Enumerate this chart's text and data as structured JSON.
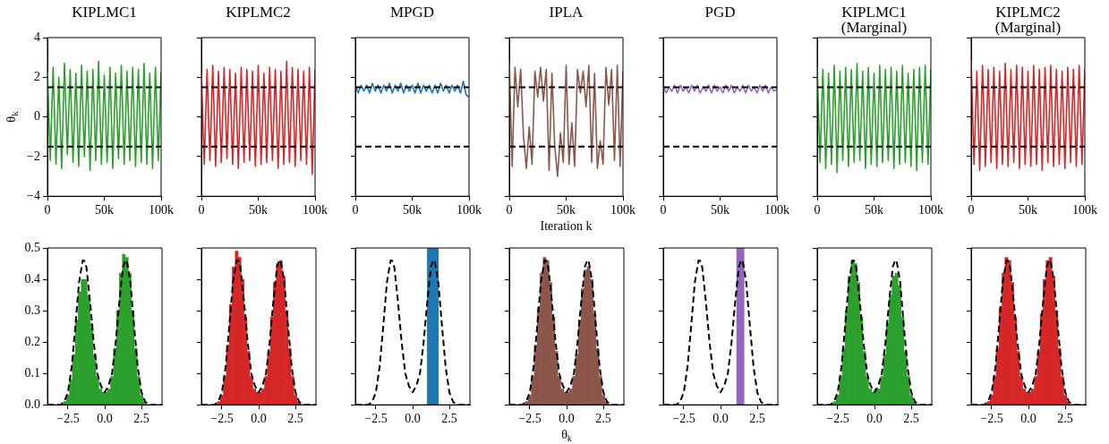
{
  "chart_data": [
    {
      "type": "line",
      "title": "KIPLMC1",
      "ylabel": "θ$_{k}$",
      "xlim": [
        0,
        100000
      ],
      "ylim": [
        -4,
        4
      ],
      "xticks": [
        {
          "value": 0,
          "label": "0"
        },
        {
          "value": 50000,
          "label": "50k"
        },
        {
          "value": 100000,
          "label": "100k"
        }
      ],
      "yticks": [
        {
          "value": -4,
          "label": "−4"
        },
        {
          "value": -2,
          "label": "−2"
        },
        0,
        2,
        4
      ],
      "ref_lines": [
        {
          "axis": "y",
          "value": 1.5,
          "color": "#000000",
          "line_style": "dashed"
        },
        {
          "axis": "y",
          "value": -1.5,
          "color": "#000000",
          "line_style": "dashed"
        }
      ],
      "x": [
        0,
        2500,
        5000,
        7500,
        10000,
        12500,
        15000,
        17500,
        20000,
        22500,
        25000,
        27500,
        30000,
        32500,
        35000,
        37500,
        40000,
        42500,
        45000,
        47500,
        50000,
        52500,
        55000,
        57500,
        60000,
        62500,
        65000,
        67500,
        70000,
        72500,
        75000,
        77500,
        80000,
        82500,
        85000,
        87500,
        90000,
        92500,
        95000,
        97500,
        100000
      ],
      "series": [
        {
          "color": "#2ca02c",
          "values": [
            2.3,
            -2.2,
            2.5,
            -2.4,
            2.0,
            -2.6,
            2.7,
            -1.9,
            2.4,
            -2.3,
            2.2,
            -2.5,
            2.6,
            -2.0,
            2.3,
            -2.7,
            2.4,
            -2.2,
            2.8,
            -2.4,
            2.1,
            -2.3,
            2.5,
            -2.6,
            2.2,
            -2.1,
            2.6,
            -2.4,
            2.3,
            -2.2,
            2.5,
            -2.5,
            2.4,
            -2.3,
            2.7,
            -2.4,
            2.2,
            -2.6,
            2.5,
            -2.2,
            2.3
          ]
        }
      ]
    },
    {
      "type": "line",
      "title": "KIPLMC2",
      "tick_labels": "x",
      "xlim": [
        0,
        100000
      ],
      "ylim": [
        -4,
        4
      ],
      "xticks": [
        {
          "value": 0,
          "label": "0"
        },
        {
          "value": 50000,
          "label": "50k"
        },
        {
          "value": 100000,
          "label": "100k"
        }
      ],
      "yticks": [
        -4,
        -2,
        0,
        2,
        4
      ],
      "ref_lines": [
        {
          "axis": "y",
          "value": 1.5,
          "color": "#000000",
          "line_style": "dashed"
        },
        {
          "axis": "y",
          "value": -1.5,
          "color": "#000000",
          "line_style": "dashed"
        }
      ],
      "x": [
        0,
        2500,
        5000,
        7500,
        10000,
        12500,
        15000,
        17500,
        20000,
        22500,
        25000,
        27500,
        30000,
        32500,
        35000,
        37500,
        40000,
        42500,
        45000,
        47500,
        50000,
        52500,
        55000,
        57500,
        60000,
        62500,
        65000,
        67500,
        70000,
        72500,
        75000,
        77500,
        80000,
        82500,
        85000,
        87500,
        90000,
        92500,
        95000,
        97500,
        100000
      ],
      "series": [
        {
          "color": "#d62728",
          "values": [
            2.2,
            -2.4,
            2.4,
            -2.2,
            2.6,
            -2.5,
            2.3,
            -2.3,
            2.5,
            -2.1,
            2.4,
            -2.4,
            2.2,
            -2.6,
            2.5,
            -2.3,
            2.4,
            -2.2,
            2.3,
            -2.5,
            2.6,
            -2.4,
            2.2,
            -2.3,
            2.5,
            -2.2,
            2.4,
            -2.6,
            2.3,
            -2.4,
            2.8,
            -2.3,
            2.5,
            -2.5,
            2.4,
            -2.2,
            2.3,
            -2.4,
            2.5,
            -2.9,
            2.4
          ]
        }
      ]
    },
    {
      "type": "line",
      "title": "MPGD",
      "tick_labels": "x",
      "xlim": [
        0,
        100000
      ],
      "ylim": [
        -4,
        4
      ],
      "xticks": [
        {
          "value": 0,
          "label": "0"
        },
        {
          "value": 50000,
          "label": "50k"
        },
        {
          "value": 100000,
          "label": "100k"
        }
      ],
      "yticks": [
        -4,
        -2,
        0,
        2,
        4
      ],
      "ref_lines": [
        {
          "axis": "y",
          "value": 1.5,
          "color": "#000000",
          "line_style": "dashed"
        },
        {
          "axis": "y",
          "value": -1.5,
          "color": "#000000",
          "line_style": "dashed"
        }
      ],
      "x": [
        0,
        2500,
        5000,
        7500,
        10000,
        12500,
        15000,
        17500,
        20000,
        22500,
        25000,
        27500,
        30000,
        32500,
        35000,
        37500,
        40000,
        42500,
        45000,
        47500,
        50000,
        52500,
        55000,
        57500,
        60000,
        62500,
        65000,
        67500,
        70000,
        72500,
        75000,
        77500,
        80000,
        82500,
        85000,
        87500,
        90000,
        92500,
        95000,
        97500,
        100000
      ],
      "series": [
        {
          "color": "#1f77b4",
          "values": [
            1.6,
            1.2,
            1.6,
            1.3,
            1.6,
            1.2,
            1.7,
            1.3,
            1.6,
            1.2,
            1.6,
            1.3,
            1.7,
            1.2,
            1.6,
            1.3,
            1.7,
            1.2,
            1.6,
            1.3,
            1.6,
            1.2,
            1.7,
            1.2,
            1.6,
            1.3,
            1.6,
            1.2,
            1.6,
            1.2,
            1.7,
            1.3,
            1.6,
            1.2,
            1.6,
            1.3,
            1.6,
            1.2,
            1.8,
            1.1,
            1.0
          ]
        }
      ]
    },
    {
      "type": "line",
      "title": "IPLA",
      "xlabel": "Iteration k",
      "tick_labels": "x",
      "xlim": [
        0,
        100000
      ],
      "ylim": [
        -4,
        4
      ],
      "xticks": [
        {
          "value": 0,
          "label": "0"
        },
        {
          "value": 50000,
          "label": "50k"
        },
        {
          "value": 100000,
          "label": "100k"
        }
      ],
      "yticks": [
        -4,
        -2,
        0,
        2,
        4
      ],
      "ref_lines": [
        {
          "axis": "y",
          "value": 1.5,
          "color": "#000000",
          "line_style": "dashed"
        },
        {
          "axis": "y",
          "value": -1.5,
          "color": "#000000",
          "line_style": "dashed"
        }
      ],
      "x": [
        0,
        2500,
        5000,
        7500,
        10000,
        12500,
        15000,
        17500,
        20000,
        22500,
        25000,
        27500,
        30000,
        32500,
        35000,
        37500,
        40000,
        42500,
        45000,
        47500,
        50000,
        52500,
        55000,
        57500,
        60000,
        62500,
        65000,
        67500,
        70000,
        72500,
        75000,
        77500,
        80000,
        82500,
        85000,
        87500,
        90000,
        92500,
        95000,
        97500,
        100000
      ],
      "series": [
        {
          "color": "#8c564b",
          "values": [
            2.8,
            -2.5,
            2.5,
            0.5,
            2.4,
            -1.0,
            -2.6,
            -0.5,
            -2.4,
            2.3,
            1.0,
            2.5,
            0.8,
            2.4,
            -2.7,
            2.2,
            -1.5,
            -3.0,
            -0.8,
            -2.3,
            2.6,
            -2.4,
            -0.3,
            -2.5,
            2.4,
            1.2,
            2.3,
            0.5,
            2.6,
            -2.3,
            2.2,
            -2.6,
            -1.2,
            -2.4,
            2.5,
            0.6,
            2.4,
            -2.2,
            2.6,
            -2.5,
            2.3
          ]
        }
      ]
    },
    {
      "type": "line",
      "title": "PGD",
      "tick_labels": "x",
      "xlim": [
        0,
        100000
      ],
      "ylim": [
        -4,
        4
      ],
      "xticks": [
        {
          "value": 0,
          "label": "0"
        },
        {
          "value": 50000,
          "label": "50k"
        },
        {
          "value": 100000,
          "label": "100k"
        }
      ],
      "yticks": [
        -4,
        -2,
        0,
        2,
        4
      ],
      "ref_lines": [
        {
          "axis": "y",
          "value": 1.5,
          "color": "#000000",
          "line_style": "dashed"
        },
        {
          "axis": "y",
          "value": -1.5,
          "color": "#000000",
          "line_style": "dashed"
        }
      ],
      "x": [
        0,
        2500,
        5000,
        7500,
        10000,
        12500,
        15000,
        17500,
        20000,
        22500,
        25000,
        27500,
        30000,
        32500,
        35000,
        37500,
        40000,
        42500,
        45000,
        47500,
        50000,
        52500,
        55000,
        57500,
        60000,
        62500,
        65000,
        67500,
        70000,
        72500,
        75000,
        77500,
        80000,
        82500,
        85000,
        87500,
        90000,
        92500,
        95000,
        97500,
        100000
      ],
      "series": [
        {
          "color": "#9467bd",
          "values": [
            1.6,
            1.2,
            1.5,
            1.3,
            1.6,
            1.2,
            1.6,
            1.3,
            1.5,
            1.2,
            1.6,
            1.3,
            1.6,
            1.2,
            1.5,
            1.3,
            1.6,
            1.2,
            1.6,
            1.3,
            1.5,
            1.2,
            1.6,
            1.3,
            1.6,
            1.2,
            1.5,
            1.3,
            1.6,
            1.2,
            1.6,
            1.3,
            1.5,
            1.2,
            1.6,
            1.3,
            1.6,
            1.2,
            1.5,
            1.3,
            1.4
          ]
        }
      ]
    },
    {
      "type": "line",
      "title": "KIPLMC1 (Marginal)",
      "tick_labels": "x",
      "xlim": [
        0,
        100000
      ],
      "ylim": [
        -4,
        4
      ],
      "xticks": [
        {
          "value": 0,
          "label": "0"
        },
        {
          "value": 50000,
          "label": "50k"
        },
        {
          "value": 100000,
          "label": "100k"
        }
      ],
      "yticks": [
        -4,
        -2,
        0,
        2,
        4
      ],
      "ref_lines": [
        {
          "axis": "y",
          "value": 1.5,
          "color": "#000000",
          "line_style": "dashed"
        },
        {
          "axis": "y",
          "value": -1.5,
          "color": "#000000",
          "line_style": "dashed"
        }
      ],
      "x": [
        0,
        2500,
        5000,
        7500,
        10000,
        12500,
        15000,
        17500,
        20000,
        22500,
        25000,
        27500,
        30000,
        32500,
        35000,
        37500,
        40000,
        42500,
        45000,
        47500,
        50000,
        52500,
        55000,
        57500,
        60000,
        62500,
        65000,
        67500,
        70000,
        72500,
        75000,
        77500,
        80000,
        82500,
        85000,
        87500,
        90000,
        92500,
        95000,
        97500,
        100000
      ],
      "series": [
        {
          "color": "#2ca02c",
          "values": [
            2.5,
            -2.3,
            2.4,
            -2.6,
            2.2,
            -2.4,
            2.6,
            -2.8,
            2.3,
            -2.2,
            2.5,
            -2.5,
            2.4,
            -2.3,
            2.7,
            -2.2,
            2.3,
            -2.6,
            2.5,
            -2.4,
            2.2,
            -2.5,
            2.6,
            -2.3,
            2.4,
            -2.2,
            2.5,
            -2.6,
            2.3,
            -2.4,
            2.6,
            -2.3,
            2.2,
            -2.5,
            2.4,
            -2.7,
            2.5,
            -2.3,
            2.6,
            -2.4,
            2.4
          ]
        }
      ]
    },
    {
      "type": "line",
      "title": "KIPLMC2 (Marginal)",
      "tick_labels": "x",
      "xlim": [
        0,
        100000
      ],
      "ylim": [
        -4,
        4
      ],
      "xticks": [
        {
          "value": 0,
          "label": "0"
        },
        {
          "value": 50000,
          "label": "50k"
        },
        {
          "value": 100000,
          "label": "100k"
        }
      ],
      "yticks": [
        -4,
        -2,
        0,
        2,
        4
      ],
      "ref_lines": [
        {
          "axis": "y",
          "value": 1.5,
          "color": "#000000",
          "line_style": "dashed"
        },
        {
          "axis": "y",
          "value": -1.5,
          "color": "#000000",
          "line_style": "dashed"
        }
      ],
      "x": [
        0,
        2500,
        5000,
        7500,
        10000,
        12500,
        15000,
        17500,
        20000,
        22500,
        25000,
        27500,
        30000,
        32500,
        35000,
        37500,
        40000,
        42500,
        45000,
        47500,
        50000,
        52500,
        55000,
        57500,
        60000,
        62500,
        65000,
        67500,
        70000,
        72500,
        75000,
        77500,
        80000,
        82500,
        85000,
        87500,
        90000,
        92500,
        95000,
        97500,
        100000
      ],
      "series": [
        {
          "color": "#d62728",
          "values": [
            2.9,
            -2.4,
            2.3,
            -2.7,
            2.6,
            -2.5,
            2.4,
            -2.3,
            2.5,
            -2.6,
            2.3,
            -2.4,
            2.7,
            -2.5,
            2.4,
            -2.3,
            2.6,
            -2.6,
            2.5,
            -2.4,
            2.3,
            -2.5,
            2.6,
            -2.4,
            2.4,
            -2.7,
            2.5,
            -2.3,
            2.6,
            -2.5,
            2.4,
            -2.4,
            2.3,
            -2.6,
            2.5,
            -2.3,
            2.4,
            -2.5,
            2.6,
            -2.4,
            2.4
          ]
        }
      ]
    },
    {
      "type": "histogram",
      "xlim": [
        -3.9,
        3.9
      ],
      "ylim": [
        0,
        0.5
      ],
      "xticks": [
        {
          "value": -2.5,
          "label": "−2.5"
        },
        {
          "value": 0,
          "label": "0.0"
        },
        {
          "value": 2.5,
          "label": "2.5"
        }
      ],
      "yticks": [
        {
          "value": 0,
          "label": "0.0"
        },
        {
          "value": 0.1,
          "label": "0.1"
        },
        {
          "value": 0.2,
          "label": "0.2"
        },
        {
          "value": 0.3,
          "label": "0.3"
        },
        {
          "value": 0.4,
          "label": "0.4"
        },
        {
          "value": 0.5,
          "label": "0.5"
        }
      ],
      "series": [
        {
          "type": "histogram",
          "color": "#2ca02c",
          "bins": [
            -3,
            -2.8,
            -2.6,
            -2.4,
            -2.2,
            -2,
            -1.8,
            -1.6,
            -1.4,
            -1.2,
            -1,
            -0.8,
            -0.6,
            -0.4,
            -0.2,
            0,
            0.2,
            0.4,
            0.6,
            0.8,
            1,
            1.2,
            1.4,
            1.6,
            1.8,
            2,
            2.2,
            2.4,
            2.6,
            2.8,
            3
          ],
          "values": [
            0,
            0.01,
            0.03,
            0.08,
            0.16,
            0.27,
            0.36,
            0.4,
            0.4,
            0.35,
            0.26,
            0.16,
            0.09,
            0.05,
            0.04,
            0.04,
            0.05,
            0.09,
            0.18,
            0.3,
            0.42,
            0.48,
            0.47,
            0.42,
            0.3,
            0.18,
            0.09,
            0.03,
            0.01,
            0
          ]
        },
        {
          "type": "line",
          "color": "#000000",
          "line_style": "dashed",
          "x": [
            -3.9,
            -3,
            -2.75,
            -2.5,
            -2.25,
            -2,
            -1.75,
            -1.5,
            -1.4,
            -1.25,
            -1,
            -0.75,
            -0.5,
            -0.25,
            0,
            0.25,
            0.5,
            0.75,
            1,
            1.25,
            1.4,
            1.5,
            1.75,
            2,
            2.25,
            2.5,
            2.75,
            3,
            3.9
          ],
          "values": [
            0,
            0,
            0.01,
            0.04,
            0.12,
            0.25,
            0.39,
            0.46,
            0.46,
            0.44,
            0.33,
            0.2,
            0.1,
            0.06,
            0.04,
            0.06,
            0.1,
            0.2,
            0.33,
            0.44,
            0.46,
            0.46,
            0.39,
            0.25,
            0.12,
            0.04,
            0.01,
            0,
            0
          ]
        }
      ]
    },
    {
      "type": "histogram",
      "tick_labels": "x",
      "xlim": [
        -3.9,
        3.9
      ],
      "ylim": [
        0,
        0.5
      ],
      "xticks": [
        {
          "value": -2.5,
          "label": "−2.5"
        },
        {
          "value": 0,
          "label": "0.0"
        },
        {
          "value": 2.5,
          "label": "2.5"
        }
      ],
      "yticks": [
        0,
        0.1,
        0.2,
        0.3,
        0.4,
        0.5
      ],
      "series": [
        {
          "type": "histogram",
          "color": "#d62728",
          "bins": [
            -3,
            -2.8,
            -2.6,
            -2.4,
            -2.2,
            -2,
            -1.8,
            -1.6,
            -1.4,
            -1.2,
            -1,
            -0.8,
            -0.6,
            -0.4,
            -0.2,
            0,
            0.2,
            0.4,
            0.6,
            0.8,
            1,
            1.2,
            1.4,
            1.6,
            1.8,
            2,
            2.2,
            2.4,
            2.6,
            2.8,
            3
          ],
          "values": [
            0,
            0.01,
            0.03,
            0.09,
            0.19,
            0.32,
            0.44,
            0.49,
            0.47,
            0.4,
            0.28,
            0.17,
            0.09,
            0.05,
            0.04,
            0.04,
            0.05,
            0.09,
            0.17,
            0.28,
            0.39,
            0.45,
            0.46,
            0.41,
            0.3,
            0.18,
            0.09,
            0.03,
            0.01,
            0
          ]
        },
        {
          "type": "line",
          "color": "#000000",
          "line_style": "dashed",
          "x": [
            -3.9,
            -3,
            -2.75,
            -2.5,
            -2.25,
            -2,
            -1.75,
            -1.5,
            -1.4,
            -1.25,
            -1,
            -0.75,
            -0.5,
            -0.25,
            0,
            0.25,
            0.5,
            0.75,
            1,
            1.25,
            1.4,
            1.5,
            1.75,
            2,
            2.25,
            2.5,
            2.75,
            3,
            3.9
          ],
          "values": [
            0,
            0,
            0.01,
            0.04,
            0.12,
            0.25,
            0.39,
            0.46,
            0.46,
            0.44,
            0.33,
            0.2,
            0.1,
            0.06,
            0.04,
            0.06,
            0.1,
            0.2,
            0.33,
            0.44,
            0.46,
            0.46,
            0.39,
            0.25,
            0.12,
            0.04,
            0.01,
            0,
            0
          ]
        }
      ]
    },
    {
      "type": "histogram",
      "tick_labels": "x",
      "xlim": [
        -3.9,
        3.9
      ],
      "ylim": [
        0,
        0.5
      ],
      "xticks": [
        {
          "value": -2.5,
          "label": "−2.5"
        },
        {
          "value": 0,
          "label": "0.0"
        },
        {
          "value": 2.5,
          "label": "2.5"
        }
      ],
      "yticks": [
        0,
        0.1,
        0.2,
        0.3,
        0.4,
        0.5
      ],
      "series": [
        {
          "type": "histogram",
          "color": "#1f77b4",
          "bins": [
            1.0,
            1.25,
            1.5,
            1.75
          ],
          "values": [
            0.5,
            0.5,
            0.5
          ]
        },
        {
          "type": "line",
          "color": "#000000",
          "line_style": "dashed",
          "x": [
            -3.9,
            -3,
            -2.75,
            -2.5,
            -2.25,
            -2,
            -1.75,
            -1.5,
            -1.4,
            -1.25,
            -1,
            -0.75,
            -0.5,
            -0.25,
            0,
            0.25,
            0.5,
            0.75,
            1,
            1.25,
            1.4,
            1.5,
            1.75,
            2,
            2.25,
            2.5,
            2.75,
            3,
            3.9
          ],
          "values": [
            0,
            0,
            0.01,
            0.04,
            0.12,
            0.25,
            0.39,
            0.46,
            0.46,
            0.44,
            0.33,
            0.2,
            0.1,
            0.06,
            0.04,
            0.06,
            0.1,
            0.2,
            0.33,
            0.44,
            0.46,
            0.46,
            0.39,
            0.25,
            0.12,
            0.04,
            0.01,
            0,
            0
          ]
        }
      ]
    },
    {
      "type": "histogram",
      "xlabel": "θ$_{k}$",
      "tick_labels": "x",
      "xlim": [
        -3.9,
        3.9
      ],
      "ylim": [
        0,
        0.5
      ],
      "xticks": [
        {
          "value": -2.5,
          "label": "−2.5"
        },
        {
          "value": 0,
          "label": "0.0"
        },
        {
          "value": 2.5,
          "label": "2.5"
        }
      ],
      "yticks": [
        0,
        0.1,
        0.2,
        0.3,
        0.4,
        0.5
      ],
      "series": [
        {
          "type": "histogram",
          "color": "#8c564b",
          "bins": [
            -3,
            -2.8,
            -2.6,
            -2.4,
            -2.2,
            -2,
            -1.8,
            -1.6,
            -1.4,
            -1.2,
            -1,
            -0.8,
            -0.6,
            -0.4,
            -0.2,
            0,
            0.2,
            0.4,
            0.6,
            0.8,
            1,
            1.2,
            1.4,
            1.6,
            1.8,
            2,
            2.2,
            2.4,
            2.6,
            2.8,
            3
          ],
          "values": [
            0,
            0.01,
            0.03,
            0.09,
            0.19,
            0.31,
            0.42,
            0.47,
            0.46,
            0.39,
            0.28,
            0.17,
            0.09,
            0.05,
            0.04,
            0.04,
            0.05,
            0.09,
            0.16,
            0.27,
            0.37,
            0.43,
            0.44,
            0.4,
            0.29,
            0.18,
            0.09,
            0.03,
            0.01,
            0
          ]
        },
        {
          "type": "line",
          "color": "#000000",
          "line_style": "dashed",
          "x": [
            -3.9,
            -3,
            -2.75,
            -2.5,
            -2.25,
            -2,
            -1.75,
            -1.5,
            -1.4,
            -1.25,
            -1,
            -0.75,
            -0.5,
            -0.25,
            0,
            0.25,
            0.5,
            0.75,
            1,
            1.25,
            1.4,
            1.5,
            1.75,
            2,
            2.25,
            2.5,
            2.75,
            3,
            3.9
          ],
          "values": [
            0,
            0,
            0.01,
            0.04,
            0.12,
            0.25,
            0.39,
            0.46,
            0.46,
            0.44,
            0.33,
            0.2,
            0.1,
            0.06,
            0.04,
            0.06,
            0.1,
            0.2,
            0.33,
            0.44,
            0.46,
            0.46,
            0.39,
            0.25,
            0.12,
            0.04,
            0.01,
            0,
            0
          ]
        }
      ]
    },
    {
      "type": "histogram",
      "tick_labels": "x",
      "xlim": [
        -3.9,
        3.9
      ],
      "ylim": [
        0,
        0.5
      ],
      "xticks": [
        {
          "value": -2.5,
          "label": "−2.5"
        },
        {
          "value": 0,
          "label": "0.0"
        },
        {
          "value": 2.5,
          "label": "2.5"
        }
      ],
      "yticks": [
        0,
        0.1,
        0.2,
        0.3,
        0.4,
        0.5
      ],
      "series": [
        {
          "type": "histogram",
          "color": "#9467bd",
          "bins": [
            1.1,
            1.35,
            1.6
          ],
          "values": [
            0.5,
            0.5
          ]
        },
        {
          "type": "line",
          "color": "#000000",
          "line_style": "dashed",
          "x": [
            -3.9,
            -3,
            -2.75,
            -2.5,
            -2.25,
            -2,
            -1.75,
            -1.5,
            -1.4,
            -1.25,
            -1,
            -0.75,
            -0.5,
            -0.25,
            0,
            0.25,
            0.5,
            0.75,
            1,
            1.25,
            1.4,
            1.5,
            1.75,
            2,
            2.25,
            2.5,
            2.75,
            3,
            3.9
          ],
          "values": [
            0,
            0,
            0.01,
            0.04,
            0.12,
            0.25,
            0.39,
            0.46,
            0.46,
            0.44,
            0.33,
            0.2,
            0.1,
            0.06,
            0.04,
            0.06,
            0.1,
            0.2,
            0.33,
            0.44,
            0.46,
            0.46,
            0.39,
            0.25,
            0.12,
            0.04,
            0.01,
            0,
            0
          ]
        }
      ]
    },
    {
      "type": "histogram",
      "tick_labels": "x",
      "xlim": [
        -3.9,
        3.9
      ],
      "ylim": [
        0,
        0.5
      ],
      "xticks": [
        {
          "value": -2.5,
          "label": "−2.5"
        },
        {
          "value": 0,
          "label": "0.0"
        },
        {
          "value": 2.5,
          "label": "2.5"
        }
      ],
      "yticks": [
        0,
        0.1,
        0.2,
        0.3,
        0.4,
        0.5
      ],
      "series": [
        {
          "type": "histogram",
          "color": "#2ca02c",
          "bins": [
            -3,
            -2.8,
            -2.6,
            -2.4,
            -2.2,
            -2,
            -1.8,
            -1.6,
            -1.4,
            -1.2,
            -1,
            -0.8,
            -0.6,
            -0.4,
            -0.2,
            0,
            0.2,
            0.4,
            0.6,
            0.8,
            1,
            1.2,
            1.4,
            1.6,
            1.8,
            2,
            2.2,
            2.4,
            2.6,
            2.8,
            3
          ],
          "values": [
            0,
            0.01,
            0.03,
            0.09,
            0.18,
            0.3,
            0.41,
            0.46,
            0.45,
            0.39,
            0.28,
            0.17,
            0.09,
            0.05,
            0.04,
            0.05,
            0.05,
            0.09,
            0.16,
            0.26,
            0.35,
            0.41,
            0.42,
            0.38,
            0.28,
            0.17,
            0.09,
            0.03,
            0.01,
            0
          ]
        },
        {
          "type": "line",
          "color": "#000000",
          "line_style": "dashed",
          "x": [
            -3.9,
            -3,
            -2.75,
            -2.5,
            -2.25,
            -2,
            -1.75,
            -1.5,
            -1.4,
            -1.25,
            -1,
            -0.75,
            -0.5,
            -0.25,
            0,
            0.25,
            0.5,
            0.75,
            1,
            1.25,
            1.4,
            1.5,
            1.75,
            2,
            2.25,
            2.5,
            2.75,
            3,
            3.9
          ],
          "values": [
            0,
            0,
            0.01,
            0.04,
            0.12,
            0.25,
            0.39,
            0.46,
            0.46,
            0.44,
            0.33,
            0.2,
            0.1,
            0.06,
            0.04,
            0.06,
            0.1,
            0.2,
            0.33,
            0.44,
            0.46,
            0.46,
            0.39,
            0.25,
            0.12,
            0.04,
            0.01,
            0,
            0
          ]
        }
      ]
    },
    {
      "type": "histogram",
      "tick_labels": "x",
      "xlim": [
        -3.9,
        3.9
      ],
      "ylim": [
        0,
        0.5
      ],
      "xticks": [
        {
          "value": -2.5,
          "label": "−2.5"
        },
        {
          "value": 0,
          "label": "0.0"
        },
        {
          "value": 2.5,
          "label": "2.5"
        }
      ],
      "yticks": [
        0,
        0.1,
        0.2,
        0.3,
        0.4,
        0.5
      ],
      "series": [
        {
          "type": "histogram",
          "color": "#d62728",
          "bins": [
            -3,
            -2.8,
            -2.6,
            -2.4,
            -2.2,
            -2,
            -1.8,
            -1.6,
            -1.4,
            -1.2,
            -1,
            -0.8,
            -0.6,
            -0.4,
            -0.2,
            0,
            0.2,
            0.4,
            0.6,
            0.8,
            1,
            1.2,
            1.4,
            1.6,
            1.8,
            2,
            2.2,
            2.4,
            2.6,
            2.8,
            3
          ],
          "values": [
            0,
            0.01,
            0.03,
            0.09,
            0.18,
            0.31,
            0.42,
            0.47,
            0.46,
            0.39,
            0.28,
            0.17,
            0.09,
            0.05,
            0.04,
            0.04,
            0.05,
            0.09,
            0.17,
            0.29,
            0.4,
            0.46,
            0.47,
            0.41,
            0.3,
            0.18,
            0.09,
            0.03,
            0.01,
            0
          ]
        },
        {
          "type": "line",
          "color": "#000000",
          "line_style": "dashed",
          "x": [
            -3.9,
            -3,
            -2.75,
            -2.5,
            -2.25,
            -2,
            -1.75,
            -1.5,
            -1.4,
            -1.25,
            -1,
            -0.75,
            -0.5,
            -0.25,
            0,
            0.25,
            0.5,
            0.75,
            1,
            1.25,
            1.4,
            1.5,
            1.75,
            2,
            2.25,
            2.5,
            2.75,
            3,
            3.9
          ],
          "values": [
            0,
            0,
            0.01,
            0.04,
            0.12,
            0.25,
            0.39,
            0.46,
            0.46,
            0.44,
            0.33,
            0.2,
            0.1,
            0.06,
            0.04,
            0.06,
            0.1,
            0.2,
            0.33,
            0.44,
            0.46,
            0.46,
            0.39,
            0.25,
            0.12,
            0.04,
            0.01,
            0,
            0
          ]
        }
      ]
    }
  ]
}
